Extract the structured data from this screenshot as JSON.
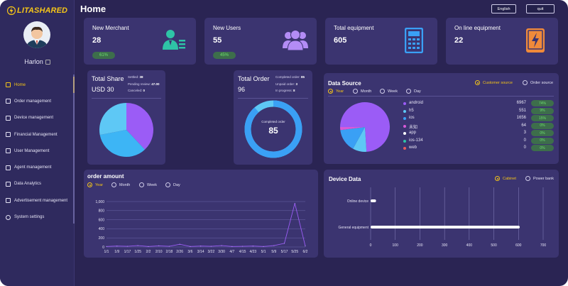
{
  "app": {
    "logo_text": "LITASHARED",
    "page_title": "Home"
  },
  "header": {
    "language": "English",
    "quit": "quit"
  },
  "user": {
    "name": "Harlon"
  },
  "sidebar": {
    "items": [
      {
        "label": "Home"
      },
      {
        "label": "Order management"
      },
      {
        "label": "Device management"
      },
      {
        "label": "Financial Management"
      },
      {
        "label": "User Management"
      },
      {
        "label": "Agent management"
      },
      {
        "label": "Data Analytics"
      },
      {
        "label": "Advertisement management"
      },
      {
        "label": "System settings"
      }
    ]
  },
  "stats": [
    {
      "title": "New Merchant",
      "value": "28",
      "badge": "61%",
      "icon": "merchant-icon",
      "color": "#2ec4a6"
    },
    {
      "title": "New Users",
      "value": "55",
      "badge": "45%",
      "icon": "users-icon",
      "color": "#b38cf5"
    },
    {
      "title": "Total equipment",
      "value": "605",
      "badge": "",
      "icon": "calculator-icon",
      "color": "#3aa0f5"
    },
    {
      "title": "On line equipment",
      "value": "22",
      "badge": "",
      "icon": "power-icon",
      "color": "#f08a3a"
    }
  ],
  "total_share": {
    "title": "Total Share",
    "amount": "USD 30",
    "settled_label": "Settled:",
    "settled": "38",
    "pending_label": "Pending review:",
    "pending": "47.00",
    "canceled_label": "Canceled:",
    "canceled": "0",
    "colors": [
      "#9b5cf6",
      "#3db5f5",
      "#5ec8f5"
    ],
    "values": [
      38,
      34,
      28
    ]
  },
  "total_order": {
    "title": "Total Order",
    "amount": "96",
    "completed_label": "Completed order:",
    "completed": "85",
    "unpaid_label": "Unpaid order:",
    "unpaid": "3",
    "progress_label": "In progress:",
    "progress": "8",
    "center_label": "Completed order",
    "center_value": "85",
    "completed_fraction": 0.885
  },
  "data_source": {
    "title": "Data Source",
    "filters": [
      "Customer source",
      "Order source"
    ],
    "periods": [
      "Year",
      "Month",
      "Week",
      "Day"
    ],
    "rows": [
      {
        "name": "android",
        "value": "6967",
        "pct": "74%",
        "color": "#9b5cf6"
      },
      {
        "name": "h5",
        "value": "551",
        "pct": "9%",
        "color": "#5ec8f5"
      },
      {
        "name": "ios",
        "value": "1656",
        "pct": "15%",
        "color": "#3aa0f5"
      },
      {
        "name": "未知",
        "value": "64",
        "pct": "0%",
        "color": "#d85ad8"
      },
      {
        "name": "app",
        "value": "3",
        "pct": "0%",
        "color": "#ffffff"
      },
      {
        "name": "ios-134",
        "value": "0",
        "pct": "0%",
        "color": "#2ec4a6"
      },
      {
        "name": "web",
        "value": "0",
        "pct": "0%",
        "color": "#e85d5d"
      }
    ],
    "pie_fractions": [
      0.74,
      0.09,
      0.15,
      0.02
    ]
  },
  "order_amount": {
    "title": "order amount",
    "periods": [
      "Year",
      "Month",
      "Week",
      "Day"
    ]
  },
  "device_data": {
    "title": "Device Data",
    "filters": [
      "Cabinet",
      "Power bank"
    ]
  },
  "chart_data": [
    {
      "type": "line",
      "title": "order amount",
      "x": [
        "1/1",
        "1/9",
        "1/17",
        "1/25",
        "2/2",
        "2/10",
        "2/18",
        "2/26",
        "3/6",
        "3/14",
        "3/22",
        "3/30",
        "4/7",
        "4/15",
        "4/23",
        "5/1",
        "5/9",
        "5/17",
        "5/25",
        "6/2"
      ],
      "series": [
        {
          "values": [
            10,
            20,
            15,
            30,
            10,
            25,
            15,
            60,
            10,
            20,
            15,
            30,
            10,
            15,
            20,
            10,
            30,
            80,
            960,
            20
          ]
        }
      ],
      "ylim": [
        0,
        1000
      ],
      "yticks": [
        "0",
        "200",
        "400",
        "600",
        "800",
        "1,000"
      ]
    },
    {
      "type": "bar",
      "title": "Device Data",
      "categories": [
        "Online device",
        "General equipment"
      ],
      "values": [
        22,
        605
      ],
      "xlim": [
        0,
        700
      ],
      "xticks": [
        "0",
        "100",
        "200",
        "300",
        "400",
        "500",
        "600",
        "700"
      ]
    }
  ]
}
